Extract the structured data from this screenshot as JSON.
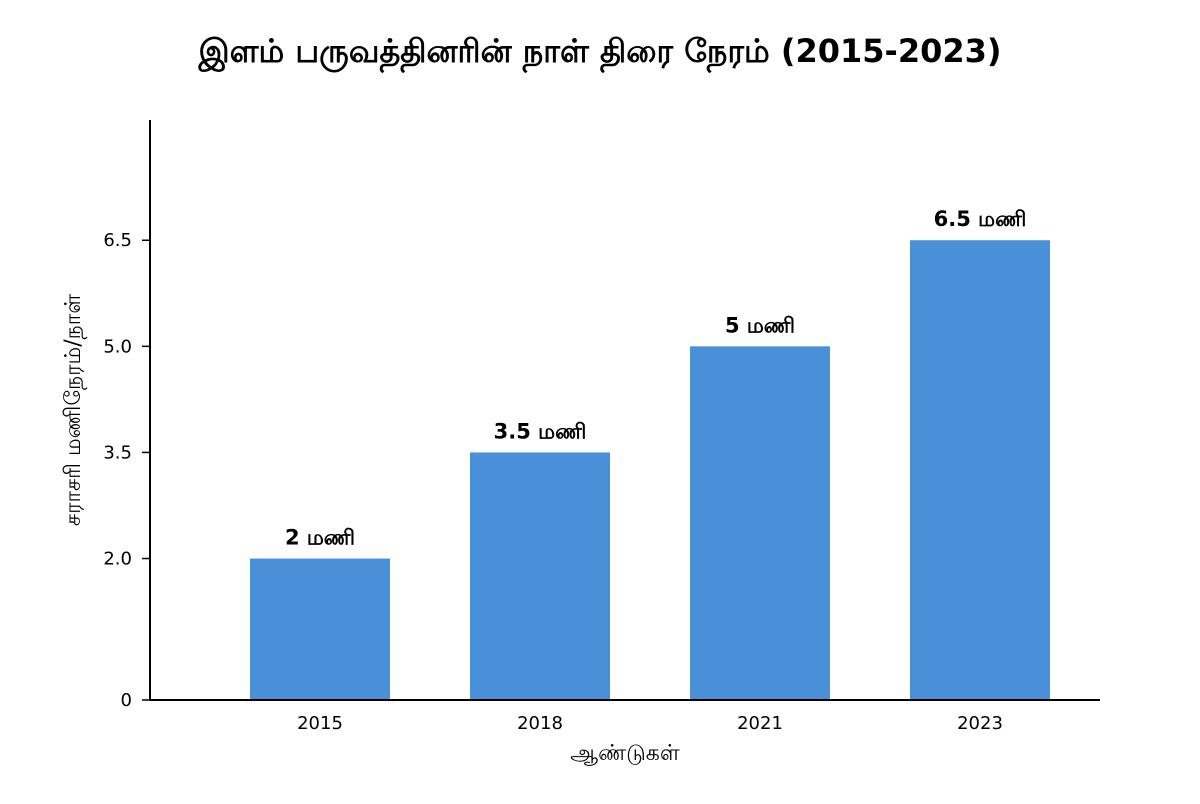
{
  "chart_data": {
    "type": "bar",
    "title": "இளம் பருவத்தினரின் நாள் திரை நேரம் (2015-2023)",
    "xlabel": "ஆண்டுகள்",
    "ylabel": "சராசரி மணிநேரம்/நாள்",
    "categories": [
      "2015",
      "2018",
      "2021",
      "2023"
    ],
    "values": [
      2,
      3.5,
      5,
      6.5
    ],
    "data_labels": [
      "2 மணி",
      "3.5 மணி",
      "5 மணி",
      "6.5 மணி"
    ],
    "yticks": [
      0,
      2.0,
      3.5,
      5.0,
      6.5
    ],
    "ytick_labels": [
      "0",
      "2.0",
      "3.5",
      "5.0",
      "6.5"
    ],
    "ylim": [
      0,
      8.2
    ],
    "bar_color": "#4a90d9",
    "grid": false,
    "legend": "none"
  }
}
